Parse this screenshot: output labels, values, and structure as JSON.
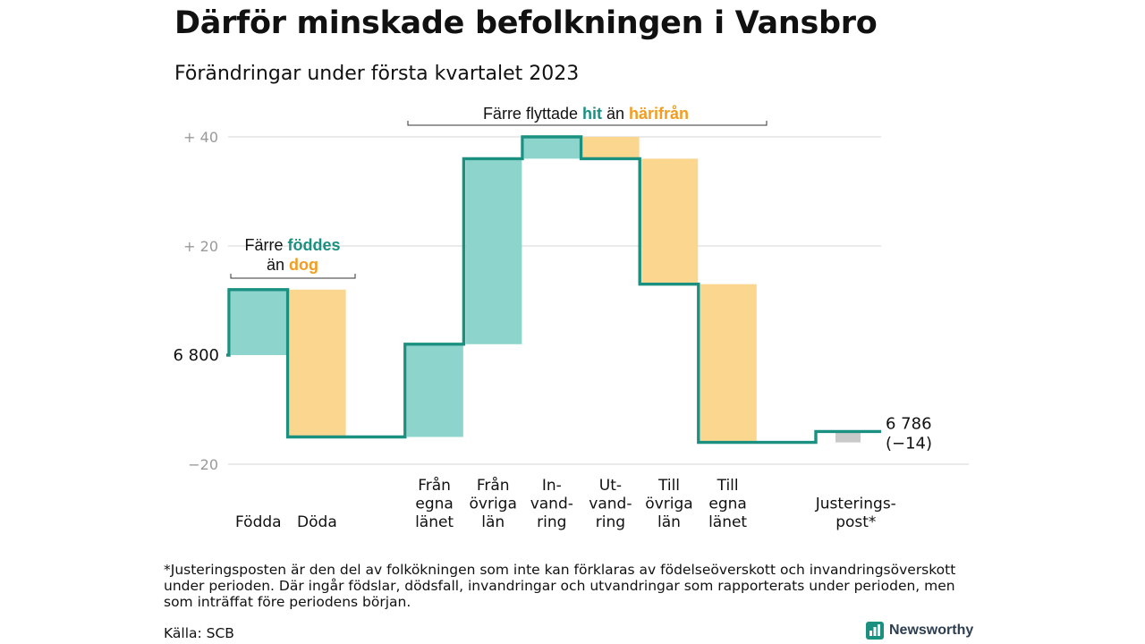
{
  "title": "Därför minskade befolkningen i Vansbro",
  "subtitle": "Förändringar under första kvartalet 2023",
  "footnote": "*Justeringsposten är den del av folkökningen som inte kan förklaras av födelseöverskott och invandringsöverskott under perioden. Där ingår födslar, dödsfall, invandringar och utvandringar som rapporterats under perioden, men som inträffat före periodens början.",
  "source": "Källa: SCB",
  "brand": "Newsworthy",
  "colors": {
    "teal_line": "#1a9080",
    "teal_fill": "#8dd5cc",
    "orange_fill": "#fbd68e",
    "orange_text": "#f39c1f",
    "gray_fill": "#c9c9c9",
    "grid": "#dddddd",
    "tick_text": "#999999"
  },
  "annotations": {
    "birth_death": {
      "line1_pre": "Färre ",
      "line1_hl": "föddes",
      "line2_pre": "än ",
      "line2_hl": "dog"
    },
    "migration": {
      "pre": "Färre flyttade ",
      "hl1": "hit",
      "mid": " än ",
      "hl2": "härifrån"
    }
  },
  "chart_data": {
    "type": "waterfall",
    "start_label": "6 800",
    "end_label": [
      "6 786",
      "(−14)"
    ],
    "start_value": 0,
    "y_ticks": [
      {
        "value": 40,
        "label": "+ 40"
      },
      {
        "value": 20,
        "label": "+ 20"
      },
      {
        "value": -20,
        "label": "−20"
      }
    ],
    "ylim": [
      -20,
      40
    ],
    "categories": [
      {
        "label": [
          "Födda"
        ],
        "delta": 12,
        "kind": "in"
      },
      {
        "label": [
          "Döda"
        ],
        "delta": -27,
        "kind": "out"
      },
      {
        "label": [],
        "delta": 0,
        "kind": "gap"
      },
      {
        "label": [
          "Från",
          "egna",
          "länet"
        ],
        "delta": 17,
        "kind": "in"
      },
      {
        "label": [
          "Från",
          "övriga",
          "län"
        ],
        "delta": 34,
        "kind": "in"
      },
      {
        "label": [
          "In-",
          "vand-",
          "ring"
        ],
        "delta": 4,
        "kind": "in"
      },
      {
        "label": [
          "Ut-",
          "vand-",
          "ring"
        ],
        "delta": -4,
        "kind": "out"
      },
      {
        "label": [
          "Till",
          "övriga",
          "län"
        ],
        "delta": -23,
        "kind": "out"
      },
      {
        "label": [
          "Till",
          "egna",
          "länet"
        ],
        "delta": -29,
        "kind": "out"
      },
      {
        "label": [],
        "delta": 0,
        "kind": "gap"
      },
      {
        "label": [
          "Justerings-",
          "post*"
        ],
        "delta": 2,
        "kind": "adjust"
      }
    ]
  }
}
